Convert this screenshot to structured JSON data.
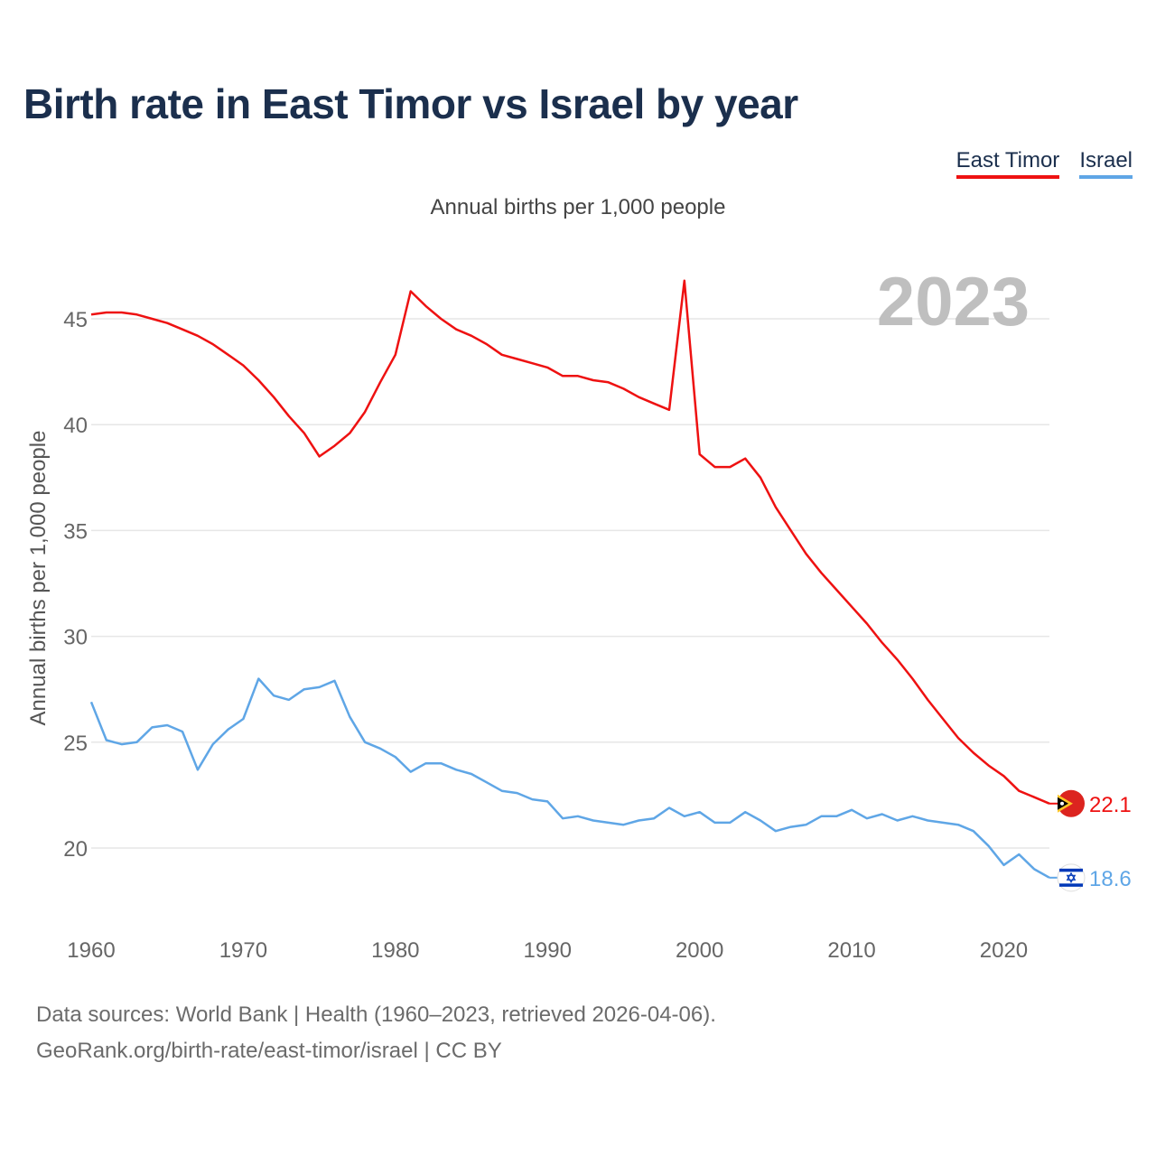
{
  "title": "Birth rate in East Timor vs Israel by year",
  "subtitle": "Annual births per 1,000 people",
  "legend": [
    "East Timor",
    "Israel"
  ],
  "year_watermark": "2023",
  "footer": {
    "line1": "Data sources: World Bank | Health (1960–2023, retrieved 2026-04-06).",
    "line2": "GeoRank.org/birth-rate/east-timor/israel | CC BY"
  },
  "colors": {
    "east_timor": "#ee1111",
    "israel": "#5fa6e6",
    "title": "#1b2f4d",
    "grid": "#e6e6e6",
    "axis_text": "#666666",
    "watermark": "#bfbfbf"
  },
  "chart_data": {
    "type": "line",
    "title": "Birth rate in East Timor vs Israel by year",
    "xlabel": "",
    "ylabel": "Annual births per 1,000 people",
    "xlim": [
      1960,
      2023
    ],
    "ylim": [
      17,
      48
    ],
    "xticks": [
      1960,
      1970,
      1980,
      1990,
      2000,
      2010,
      2020
    ],
    "yticks": [
      20,
      25,
      30,
      35,
      40,
      45
    ],
    "x": [
      1960,
      1961,
      1962,
      1963,
      1964,
      1965,
      1966,
      1967,
      1968,
      1969,
      1970,
      1971,
      1972,
      1973,
      1974,
      1975,
      1976,
      1977,
      1978,
      1979,
      1980,
      1981,
      1982,
      1983,
      1984,
      1985,
      1986,
      1987,
      1988,
      1989,
      1990,
      1991,
      1992,
      1993,
      1994,
      1995,
      1996,
      1997,
      1998,
      1999,
      2000,
      2001,
      2002,
      2003,
      2004,
      2005,
      2006,
      2007,
      2008,
      2009,
      2010,
      2011,
      2012,
      2013,
      2014,
      2015,
      2016,
      2017,
      2018,
      2019,
      2020,
      2021,
      2022,
      2023
    ],
    "series": [
      {
        "name": "East Timor",
        "key": "east_timor",
        "end_label": "22.1",
        "values": [
          45.2,
          45.3,
          45.3,
          45.2,
          45.0,
          44.8,
          44.5,
          44.2,
          43.8,
          43.3,
          42.8,
          42.1,
          41.3,
          40.4,
          39.6,
          38.5,
          39.0,
          39.6,
          40.6,
          42.0,
          43.3,
          46.3,
          45.6,
          45.0,
          44.5,
          44.2,
          43.8,
          43.3,
          43.1,
          42.9,
          42.7,
          42.3,
          42.3,
          42.1,
          42.0,
          41.7,
          41.3,
          41.0,
          40.7,
          46.8,
          38.6,
          38.0,
          38.0,
          38.4,
          37.5,
          36.1,
          35.0,
          33.9,
          33.0,
          32.2,
          31.4,
          30.6,
          29.7,
          28.9,
          28.0,
          27.0,
          26.1,
          25.2,
          24.5,
          23.9,
          23.4,
          22.7,
          22.4,
          22.1
        ]
      },
      {
        "name": "Israel",
        "key": "israel",
        "end_label": "18.6",
        "values": [
          26.9,
          25.1,
          24.9,
          25.0,
          25.7,
          25.8,
          25.5,
          23.7,
          24.9,
          25.6,
          26.1,
          28.0,
          27.2,
          27.0,
          27.5,
          27.6,
          27.9,
          26.2,
          25.0,
          24.7,
          24.3,
          23.6,
          24.0,
          24.0,
          23.7,
          23.5,
          23.1,
          22.7,
          22.6,
          22.3,
          22.2,
          21.4,
          21.5,
          21.3,
          21.2,
          21.1,
          21.3,
          21.4,
          21.9,
          21.5,
          21.7,
          21.2,
          21.2,
          21.7,
          21.3,
          20.8,
          21.0,
          21.1,
          21.5,
          21.5,
          21.8,
          21.4,
          21.6,
          21.3,
          21.5,
          21.3,
          21.2,
          21.1,
          20.8,
          20.1,
          19.2,
          19.7,
          19.0,
          18.6
        ]
      }
    ]
  }
}
